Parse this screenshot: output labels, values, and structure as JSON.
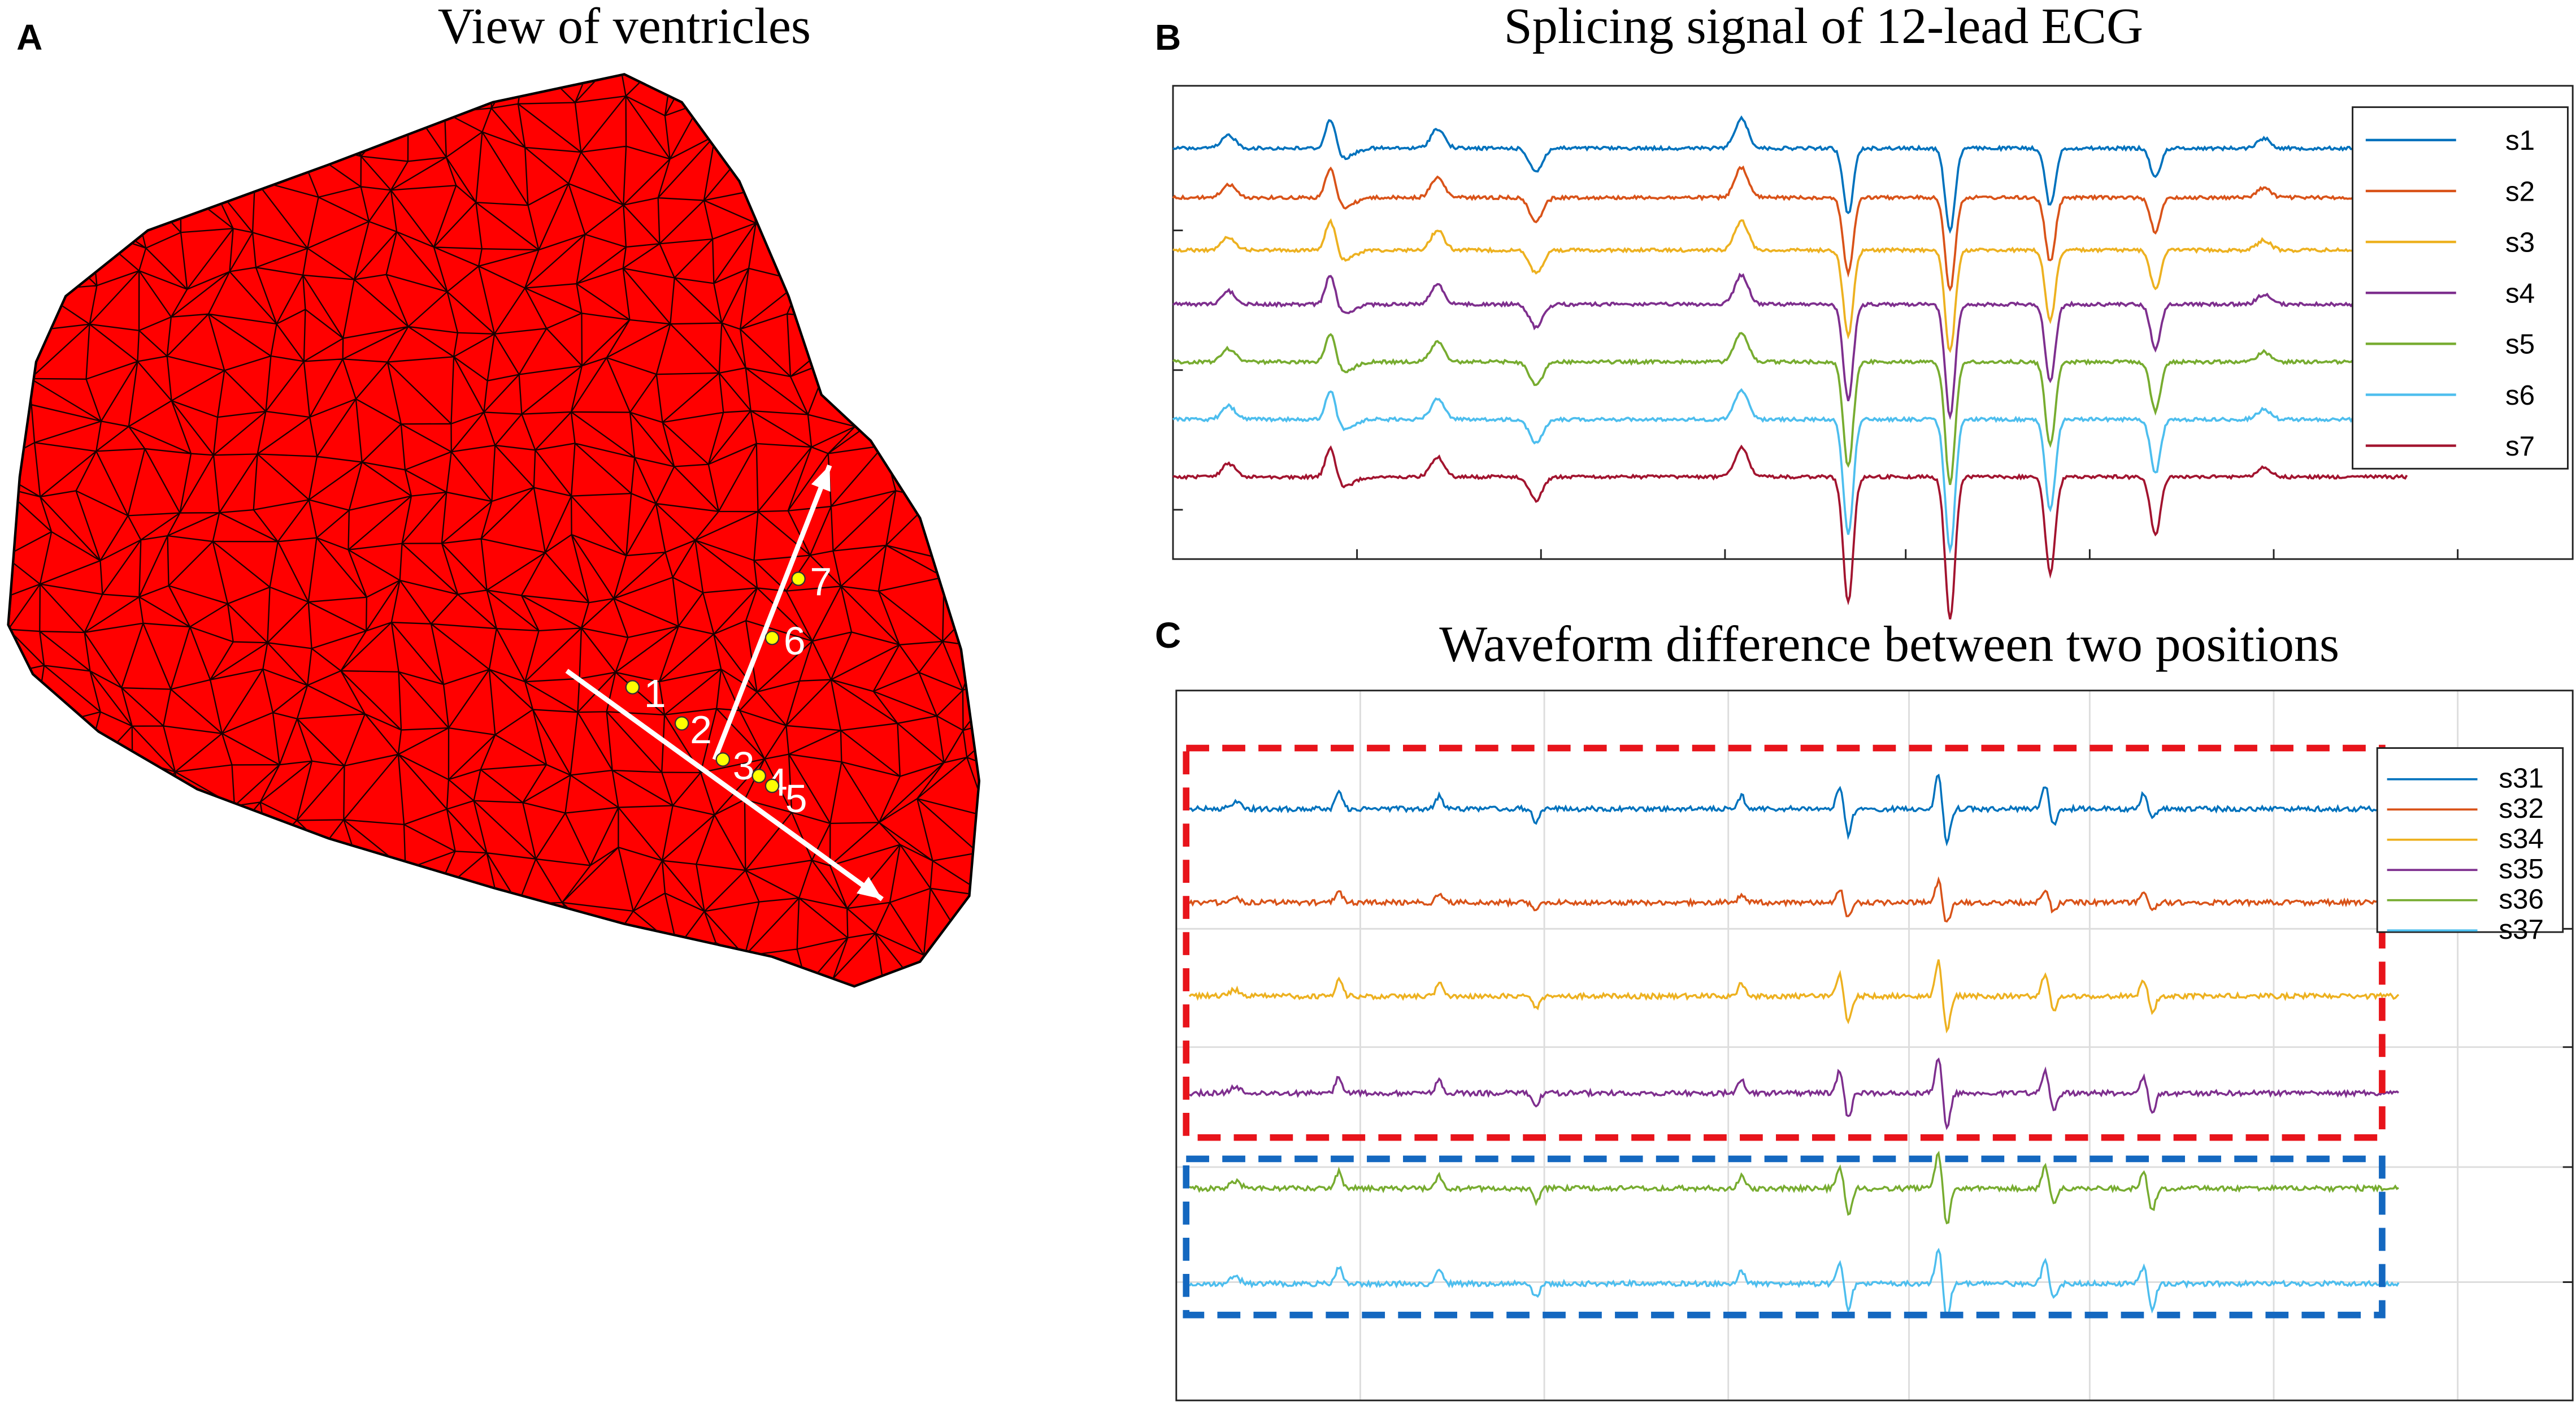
{
  "panels": [
    {
      "letter": "A",
      "title": "View of ventricles",
      "points": [
        "1",
        "2",
        "3",
        "4",
        "5",
        "6",
        "7"
      ]
    },
    {
      "letter": "B",
      "title": "Splicing signal of 12-lead ECG",
      "legend": [
        {
          "name": "s1",
          "color": "#0072bd"
        },
        {
          "name": "s2",
          "color": "#d95319"
        },
        {
          "name": "s3",
          "color": "#edb120"
        },
        {
          "name": "s4",
          "color": "#7e2f8e"
        },
        {
          "name": "s5",
          "color": "#77ac30"
        },
        {
          "name": "s6",
          "color": "#4dbeee"
        },
        {
          "name": "s7",
          "color": "#a2142f"
        }
      ]
    },
    {
      "letter": "C",
      "title": "Waveform difference between two positions",
      "legend": [
        {
          "name": "s31",
          "color": "#0072bd"
        },
        {
          "name": "s32",
          "color": "#d95319"
        },
        {
          "name": "s34",
          "color": "#edb120"
        },
        {
          "name": "s35",
          "color": "#7e2f8e"
        },
        {
          "name": "s36",
          "color": "#77ac30"
        },
        {
          "name": "s37",
          "color": "#4dbeee"
        }
      ]
    }
  ]
}
